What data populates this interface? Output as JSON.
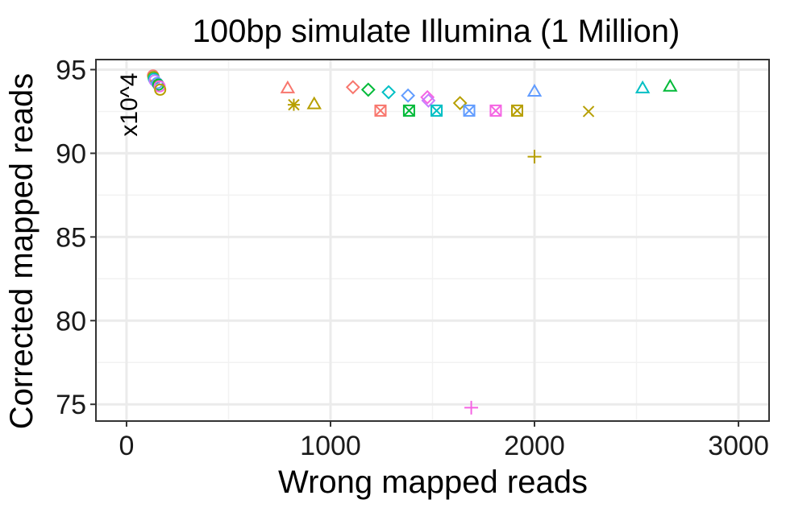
{
  "chart_data": {
    "type": "scatter",
    "title": "100bp simulate Illumina (1 Million)",
    "xlabel": "Wrong mapped reads",
    "ylabel": "Corrected mapped reads",
    "y_scale_label": "x10^4",
    "xlim": [
      -150,
      3150
    ],
    "ylim": [
      74,
      95.6
    ],
    "x_ticks": [
      0,
      1000,
      2000,
      3000
    ],
    "x_tick_labels": [
      "0",
      "1000",
      "2000",
      "3000"
    ],
    "y_ticks": [
      75,
      80,
      85,
      90,
      95
    ],
    "y_tick_labels": [
      "75",
      "80",
      "85",
      "90",
      "95"
    ],
    "grid": true,
    "legend": "none",
    "points": [
      {
        "x": 130,
        "y": 94.65,
        "shape": "circle",
        "color": "#F8766D"
      },
      {
        "x": 132,
        "y": 94.55,
        "shape": "circle",
        "color": "#7CAE00"
      },
      {
        "x": 134,
        "y": 94.45,
        "shape": "circle",
        "color": "#00BFC4"
      },
      {
        "x": 138,
        "y": 94.35,
        "shape": "circle",
        "color": "#C77CFF"
      },
      {
        "x": 150,
        "y": 94.2,
        "shape": "circle",
        "color": "#619CFF"
      },
      {
        "x": 156,
        "y": 94.1,
        "shape": "circle",
        "color": "#00BA38"
      },
      {
        "x": 162,
        "y": 94.0,
        "shape": "circle",
        "color": "#F564E3"
      },
      {
        "x": 165,
        "y": 93.8,
        "shape": "circle",
        "color": "#B79F00"
      },
      {
        "x": 790,
        "y": 93.9,
        "shape": "triangle",
        "color": "#F8766D"
      },
      {
        "x": 820,
        "y": 92.9,
        "shape": "asterisk",
        "color": "#B79F00"
      },
      {
        "x": 920,
        "y": 92.95,
        "shape": "triangle",
        "color": "#B79F00"
      },
      {
        "x": 1110,
        "y": 93.95,
        "shape": "diamond",
        "color": "#F8766D"
      },
      {
        "x": 1185,
        "y": 93.8,
        "shape": "diamond",
        "color": "#00BA38"
      },
      {
        "x": 1285,
        "y": 93.65,
        "shape": "diamond",
        "color": "#00BFC4"
      },
      {
        "x": 1380,
        "y": 93.45,
        "shape": "diamond",
        "color": "#619CFF"
      },
      {
        "x": 1475,
        "y": 93.35,
        "shape": "diamond",
        "color": "#F564E3"
      },
      {
        "x": 1480,
        "y": 93.15,
        "shape": "diamond",
        "color": "#C77CFF"
      },
      {
        "x": 1635,
        "y": 93.0,
        "shape": "diamond",
        "color": "#B79F00"
      },
      {
        "x": 1245,
        "y": 92.55,
        "shape": "boxx",
        "color": "#F8766D"
      },
      {
        "x": 1385,
        "y": 92.55,
        "shape": "boxx",
        "color": "#00BA38"
      },
      {
        "x": 1520,
        "y": 92.55,
        "shape": "boxx",
        "color": "#00BFC4"
      },
      {
        "x": 1680,
        "y": 92.55,
        "shape": "boxx",
        "color": "#619CFF"
      },
      {
        "x": 1810,
        "y": 92.55,
        "shape": "boxx",
        "color": "#F564E3"
      },
      {
        "x": 1915,
        "y": 92.55,
        "shape": "boxx",
        "color": "#B79F00"
      },
      {
        "x": 2000,
        "y": 89.8,
        "shape": "plus",
        "color": "#B79F00"
      },
      {
        "x": 1690,
        "y": 74.8,
        "shape": "plus",
        "color": "#F564E3"
      },
      {
        "x": 2000,
        "y": 93.7,
        "shape": "triangle",
        "color": "#619CFF"
      },
      {
        "x": 2265,
        "y": 92.5,
        "shape": "cross",
        "color": "#B79F00"
      },
      {
        "x": 2530,
        "y": 93.9,
        "shape": "triangle",
        "color": "#00BFC4"
      },
      {
        "x": 2665,
        "y": 94.0,
        "shape": "triangle",
        "color": "#00BA38"
      }
    ]
  }
}
